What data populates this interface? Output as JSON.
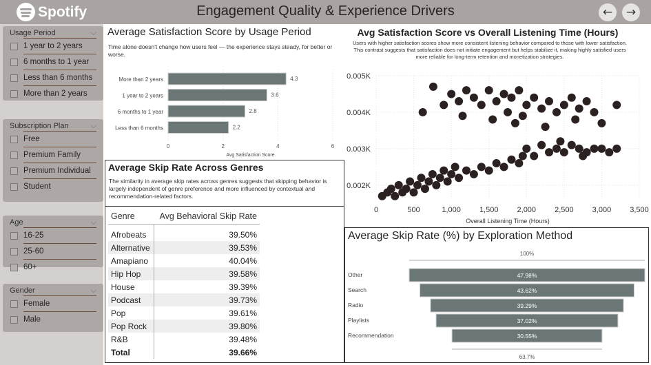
{
  "header": {
    "brand": "Spotify",
    "title": "Engagement Quality & Experience Drivers",
    "back": "←",
    "forward": "→"
  },
  "filters": [
    {
      "title": "Usage Period",
      "options": [
        "1 year to 2 years",
        "6 months to 1 year",
        "Less than 6 months",
        "More than 2 years"
      ]
    },
    {
      "title": "Subscription Plan",
      "options": [
        "Free",
        "Premium Family",
        "Premium Individual",
        "Student"
      ]
    },
    {
      "title": "Age",
      "options": [
        "16-25",
        "25-60",
        "60+"
      ]
    },
    {
      "title": "Gender",
      "options": [
        "Female",
        "Male"
      ]
    }
  ],
  "satisfaction_chart": {
    "title": "Average Satisfaction Score by Usage Period",
    "subtitle": "Time alone doesn't change how users feel — the experience stays steady, for better or worse."
  },
  "scatter_chart": {
    "title": "Avg Satisfaction Score vs Overall Listening Time (Hours)",
    "subtitle": "Users with higher satisfaction scores show more consistent listening behavior compared to those with lower satisfaction. This contrast suggests that satisfaction does not initiate engagement but helps stabilize it, making highly satisfied users more reliable for long-term retention and monetization strategies."
  },
  "genre_table": {
    "title": "Average Skip Rate Across Genres",
    "subtitle": "The similarity in average skip rates across genres suggests that skipping behavior is largely independent of genre preference and more influenced by contextual and recommendation-related factors.",
    "columns": [
      "Genre",
      "Avg Behavioral Skip Rate"
    ],
    "rows": [
      [
        "Afrobeats",
        "39.50%"
      ],
      [
        "Alternative",
        "39.53%"
      ],
      [
        "Amapiano",
        "40.04%"
      ],
      [
        "Hip Hop",
        "39.58%"
      ],
      [
        "House",
        "39.39%"
      ],
      [
        "Podcast",
        "39.73%"
      ],
      [
        "Pop",
        "39.61%"
      ],
      [
        "Pop Rock",
        "39.80%"
      ],
      [
        "R&B",
        "39.48%"
      ]
    ],
    "total": [
      "Total",
      "39.66%"
    ]
  },
  "funnel_chart": {
    "title": "Average Skip Rate (%) by Exploration Method"
  },
  "chart_data": [
    {
      "type": "bar",
      "orientation": "horizontal",
      "categories": [
        "More than 2 years",
        "1 year to 2 years",
        "6 months to 1 year",
        "Less than 6 months"
      ],
      "values": [
        4.3,
        3.6,
        2.8,
        2.2
      ],
      "xlabel": "Avg Satisfaction Score",
      "ylabel": "",
      "xlim": [
        0,
        6
      ],
      "xticks": [
        "0",
        "2",
        "4",
        "6"
      ],
      "color": "#6b7777"
    },
    {
      "type": "scatter",
      "xlabel": "Overall Listening Time (Hours)",
      "ylabel": "",
      "xlim": [
        0,
        3500
      ],
      "ylim": [
        0.0016,
        0.005
      ],
      "xticks": [
        "0",
        "500",
        "1,000",
        "1,500",
        "2,000",
        "2,500",
        "3,000",
        "3,500"
      ],
      "yticks": [
        "0.002K",
        "0.003K",
        "0.004K",
        "0.005K"
      ],
      "ytick_values": [
        0.002,
        0.003,
        0.004,
        0.005
      ],
      "color": "#2b2120",
      "points": [
        [
          80,
          0.0017
        ],
        [
          150,
          0.0018
        ],
        [
          200,
          0.0019
        ],
        [
          250,
          0.0017
        ],
        [
          300,
          0.002
        ],
        [
          350,
          0.0018
        ],
        [
          400,
          0.0019
        ],
        [
          450,
          0.0021
        ],
        [
          500,
          0.0018
        ],
        [
          550,
          0.002
        ],
        [
          600,
          0.0022
        ],
        [
          650,
          0.0019
        ],
        [
          700,
          0.0021
        ],
        [
          750,
          0.0023
        ],
        [
          800,
          0.002
        ],
        [
          850,
          0.0022
        ],
        [
          900,
          0.0024
        ],
        [
          950,
          0.0021
        ],
        [
          1000,
          0.0023
        ],
        [
          1050,
          0.0025
        ],
        [
          1100,
          0.0022
        ],
        [
          1200,
          0.0024
        ],
        [
          1300,
          0.0023
        ],
        [
          1400,
          0.0025
        ],
        [
          1500,
          0.0024
        ],
        [
          1600,
          0.0026
        ],
        [
          1700,
          0.0025
        ],
        [
          1800,
          0.0027
        ],
        [
          1900,
          0.0026
        ],
        [
          1950,
          0.0028
        ],
        [
          2000,
          0.003
        ],
        [
          2100,
          0.0028
        ],
        [
          2200,
          0.0031
        ],
        [
          2300,
          0.0029
        ],
        [
          2400,
          0.003
        ],
        [
          2500,
          0.0029
        ],
        [
          2600,
          0.0031
        ],
        [
          2700,
          0.003
        ],
        [
          2800,
          0.0029
        ],
        [
          2900,
          0.003
        ],
        [
          3000,
          0.003
        ],
        [
          3100,
          0.0029
        ],
        [
          3200,
          0.003
        ],
        [
          2450,
          0.0032
        ],
        [
          2750,
          0.0028
        ],
        [
          760,
          0.0047
        ],
        [
          620,
          0.004
        ],
        [
          900,
          0.0042
        ],
        [
          1000,
          0.0045
        ],
        [
          1100,
          0.0043
        ],
        [
          1200,
          0.0046
        ],
        [
          1300,
          0.0044
        ],
        [
          1400,
          0.0042
        ],
        [
          1500,
          0.0046
        ],
        [
          1600,
          0.0043
        ],
        [
          1700,
          0.0045
        ],
        [
          1800,
          0.0044
        ],
        [
          1900,
          0.0046
        ],
        [
          2000,
          0.0042
        ],
        [
          2100,
          0.0044
        ],
        [
          2200,
          0.0041
        ],
        [
          2300,
          0.0043
        ],
        [
          2400,
          0.004
        ],
        [
          2500,
          0.0042
        ],
        [
          2600,
          0.0044
        ],
        [
          2700,
          0.0041
        ],
        [
          2900,
          0.004
        ],
        [
          3200,
          0.0042
        ],
        [
          1150,
          0.0039
        ],
        [
          1550,
          0.0038
        ],
        [
          1850,
          0.0037
        ],
        [
          2250,
          0.0036
        ],
        [
          2650,
          0.0038
        ],
        [
          1750,
          0.004
        ],
        [
          1950,
          0.0039
        ],
        [
          2800,
          0.0043
        ],
        [
          3000,
          0.0037
        ]
      ]
    },
    {
      "type": "funnel",
      "categories": [
        "Other",
        "Search",
        "Radio",
        "Playlists",
        "Recommendation"
      ],
      "values": [
        47.98,
        43.62,
        39.29,
        37.02,
        30.55
      ],
      "labels": [
        "47.98%",
        "43.62%",
        "39.29%",
        "37.02%",
        "30.55%"
      ],
      "top_label": "100%",
      "bottom_label": "63.7%",
      "color": "#6b7777"
    }
  ]
}
